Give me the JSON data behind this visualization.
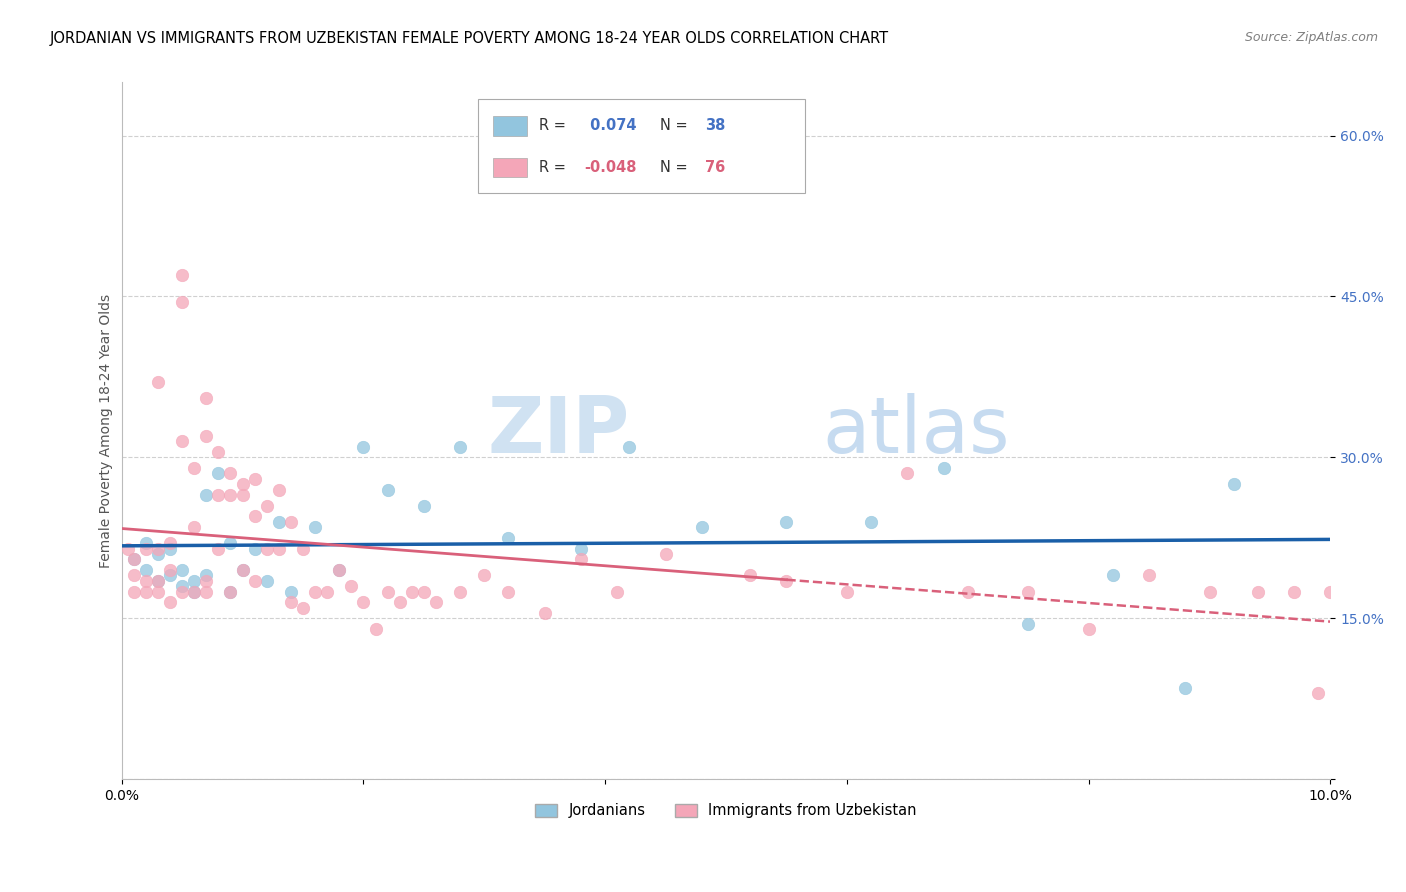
{
  "title": "JORDANIAN VS IMMIGRANTS FROM UZBEKISTAN FEMALE POVERTY AMONG 18-24 YEAR OLDS CORRELATION CHART",
  "source": "Source: ZipAtlas.com",
  "ylabel": "Female Poverty Among 18-24 Year Olds",
  "xlim": [
    0.0,
    0.1
  ],
  "ylim": [
    0.0,
    0.65
  ],
  "yticks": [
    0.0,
    0.15,
    0.3,
    0.45,
    0.6
  ],
  "ytick_labels": [
    "",
    "15.0%",
    "30.0%",
    "45.0%",
    "60.0%"
  ],
  "xticks": [
    0.0,
    0.02,
    0.04,
    0.06,
    0.08,
    0.1
  ],
  "xtick_labels": [
    "0.0%",
    "",
    "",
    "",
    "",
    "10.0%"
  ],
  "legend_label1": "Jordanians",
  "legend_label2": "Immigrants from Uzbekistan",
  "blue_color": "#92c5de",
  "pink_color": "#f4a6b8",
  "trend_blue": "#1a5fa8",
  "trend_pink": "#d9607a",
  "blue_x": [
    0.001,
    0.002,
    0.002,
    0.003,
    0.003,
    0.004,
    0.004,
    0.005,
    0.005,
    0.006,
    0.006,
    0.007,
    0.007,
    0.008,
    0.009,
    0.009,
    0.01,
    0.011,
    0.012,
    0.013,
    0.014,
    0.016,
    0.018,
    0.02,
    0.022,
    0.025,
    0.028,
    0.032,
    0.038,
    0.042,
    0.048,
    0.055,
    0.062,
    0.068,
    0.075,
    0.082,
    0.088,
    0.092
  ],
  "blue_y": [
    0.205,
    0.22,
    0.195,
    0.21,
    0.185,
    0.19,
    0.215,
    0.18,
    0.195,
    0.185,
    0.175,
    0.19,
    0.265,
    0.285,
    0.175,
    0.22,
    0.195,
    0.215,
    0.185,
    0.24,
    0.175,
    0.235,
    0.195,
    0.31,
    0.27,
    0.255,
    0.31,
    0.225,
    0.215,
    0.31,
    0.235,
    0.24,
    0.24,
    0.29,
    0.145,
    0.19,
    0.085,
    0.275
  ],
  "pink_x": [
    0.0005,
    0.001,
    0.001,
    0.001,
    0.002,
    0.002,
    0.002,
    0.003,
    0.003,
    0.003,
    0.003,
    0.004,
    0.004,
    0.004,
    0.005,
    0.005,
    0.005,
    0.005,
    0.006,
    0.006,
    0.006,
    0.007,
    0.007,
    0.007,
    0.007,
    0.008,
    0.008,
    0.008,
    0.009,
    0.009,
    0.009,
    0.01,
    0.01,
    0.01,
    0.011,
    0.011,
    0.011,
    0.012,
    0.012,
    0.013,
    0.013,
    0.014,
    0.014,
    0.015,
    0.015,
    0.016,
    0.017,
    0.018,
    0.019,
    0.02,
    0.021,
    0.022,
    0.023,
    0.024,
    0.025,
    0.026,
    0.028,
    0.03,
    0.032,
    0.035,
    0.038,
    0.041,
    0.045,
    0.052,
    0.055,
    0.06,
    0.065,
    0.07,
    0.075,
    0.08,
    0.085,
    0.09,
    0.094,
    0.097,
    0.099,
    0.1
  ],
  "pink_y": [
    0.215,
    0.19,
    0.175,
    0.205,
    0.215,
    0.185,
    0.175,
    0.37,
    0.215,
    0.185,
    0.175,
    0.195,
    0.22,
    0.165,
    0.47,
    0.445,
    0.315,
    0.175,
    0.29,
    0.235,
    0.175,
    0.355,
    0.32,
    0.185,
    0.175,
    0.305,
    0.265,
    0.215,
    0.285,
    0.265,
    0.175,
    0.275,
    0.265,
    0.195,
    0.245,
    0.28,
    0.185,
    0.255,
    0.215,
    0.27,
    0.215,
    0.24,
    0.165,
    0.215,
    0.16,
    0.175,
    0.175,
    0.195,
    0.18,
    0.165,
    0.14,
    0.175,
    0.165,
    0.175,
    0.175,
    0.165,
    0.175,
    0.19,
    0.175,
    0.155,
    0.205,
    0.175,
    0.21,
    0.19,
    0.185,
    0.175,
    0.285,
    0.175,
    0.175,
    0.14,
    0.19,
    0.175,
    0.175,
    0.175,
    0.08,
    0.175
  ],
  "watermark_zip": "ZIP",
  "watermark_atlas": "atlas",
  "marker_size": 80,
  "title_fontsize": 10.5,
  "axis_fontsize": 10,
  "tick_fontsize": 10,
  "tick_color": "#4472c4",
  "grid_color": "#d0d0d0"
}
